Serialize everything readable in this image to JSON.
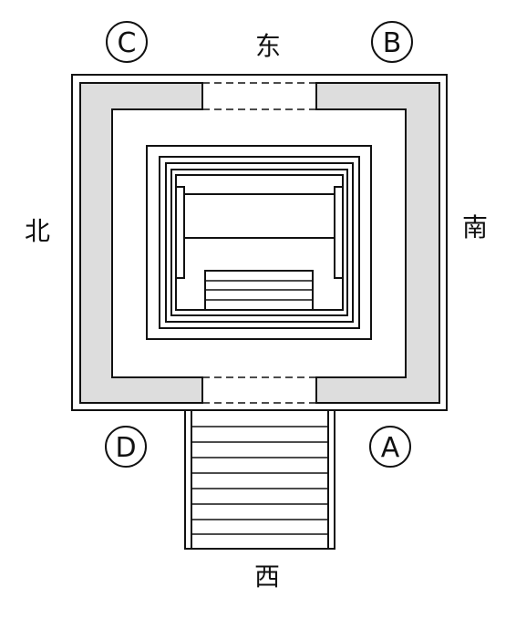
{
  "directions": {
    "east": "东",
    "west": "西",
    "south": "南",
    "north": "北"
  },
  "corners": {
    "a": "A",
    "b": "B",
    "c": "C",
    "d": "D"
  },
  "colors": {
    "stroke": "#111111",
    "wall_fill": "#dddddd",
    "background": "#ffffff"
  }
}
